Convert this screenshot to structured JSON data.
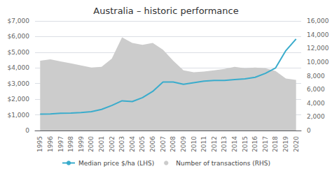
{
  "chart_data": {
    "type": "line",
    "title": "Australia – historic performance",
    "categories": [
      1995,
      1996,
      1997,
      1998,
      1999,
      2000,
      2001,
      2002,
      2003,
      2004,
      2005,
      2006,
      2007,
      2008,
      2009,
      2010,
      2011,
      2012,
      2013,
      2014,
      2015,
      2016,
      2017,
      2018,
      2019,
      2020
    ],
    "series": [
      {
        "name": "Median price $/ha (LHS)",
        "type": "line",
        "color": "#3aaccc",
        "values": [
          1050,
          1060,
          1100,
          1120,
          1150,
          1200,
          1350,
          1600,
          1900,
          1850,
          2100,
          2500,
          3100,
          3100,
          2950,
          3050,
          3150,
          3200,
          3200,
          3250,
          3300,
          3400,
          3650,
          4000,
          5100,
          5850
        ]
      },
      {
        "name": "Number of transactions (RHS)",
        "type": "area",
        "color": "#cccccc",
        "axis": "y2",
        "values": [
          10200,
          10400,
          10100,
          9800,
          9500,
          9200,
          9300,
          10500,
          13600,
          12800,
          12500,
          12800,
          11800,
          10200,
          8800,
          8500,
          8600,
          8800,
          9000,
          9300,
          9100,
          9200,
          9100,
          8700,
          7600,
          7400
        ]
      }
    ],
    "ylim": [
      0,
      7000
    ],
    "yticks": [
      0,
      {
        "value": 1000,
        "label": "$1,000"
      },
      {
        "value": 2000,
        "label": "$2,000"
      },
      {
        "value": 3000,
        "label": "$3,000"
      },
      {
        "value": 4000,
        "label": "$4,000"
      },
      {
        "value": 5000,
        "label": "$5,000"
      },
      {
        "value": 6000,
        "label": "$6,000"
      },
      {
        "value": 7000,
        "label": "$7,000"
      }
    ],
    "y2lim": [
      0,
      16000
    ],
    "y2ticks": [
      0,
      {
        "value": 2000,
        "label": "2,000"
      },
      {
        "value": 4000,
        "label": "4,000"
      },
      {
        "value": 6000,
        "label": "6,000"
      },
      {
        "value": 8000,
        "label": "8,000"
      },
      {
        "value": 10000,
        "label": "10,000"
      },
      {
        "value": 12000,
        "label": "12,000"
      },
      {
        "value": 14000,
        "label": "14,000"
      },
      {
        "value": 16000,
        "label": "16,000"
      }
    ],
    "grid": true,
    "legend": "bottom"
  }
}
